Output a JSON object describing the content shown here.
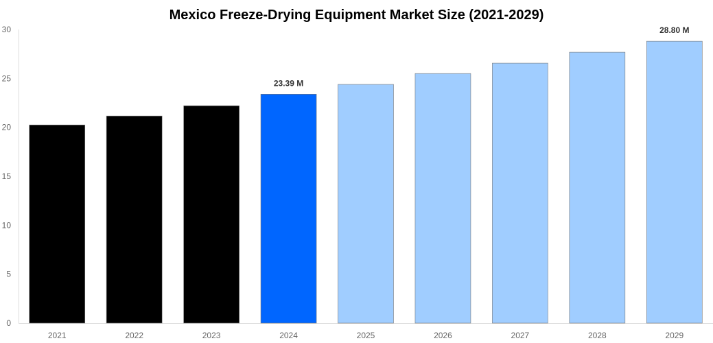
{
  "chart_data": {
    "type": "bar",
    "title": "Mexico Freeze-Drying Equipment Market Size (2021-2029)",
    "xlabel": "",
    "ylabel": "",
    "categories": [
      "2021",
      "2022",
      "2023",
      "2024",
      "2025",
      "2026",
      "2027",
      "2028",
      "2029"
    ],
    "values": [
      20.25,
      21.16,
      22.21,
      23.39,
      24.39,
      25.5,
      26.56,
      27.68,
      28.8
    ],
    "bar_colors": [
      "#000000",
      "#000000",
      "#000000",
      "#0066ff",
      "#a0cdff",
      "#a0cdff",
      "#a0cdff",
      "#a0cdff",
      "#a0cdff"
    ],
    "data_labels": {
      "3": "23.39 M",
      "8": "28.80 M"
    },
    "ylim": [
      0,
      30
    ],
    "yticks": [
      "0",
      "5",
      "10",
      "15",
      "20",
      "25",
      "30"
    ],
    "grid": false,
    "legend": "none"
  }
}
